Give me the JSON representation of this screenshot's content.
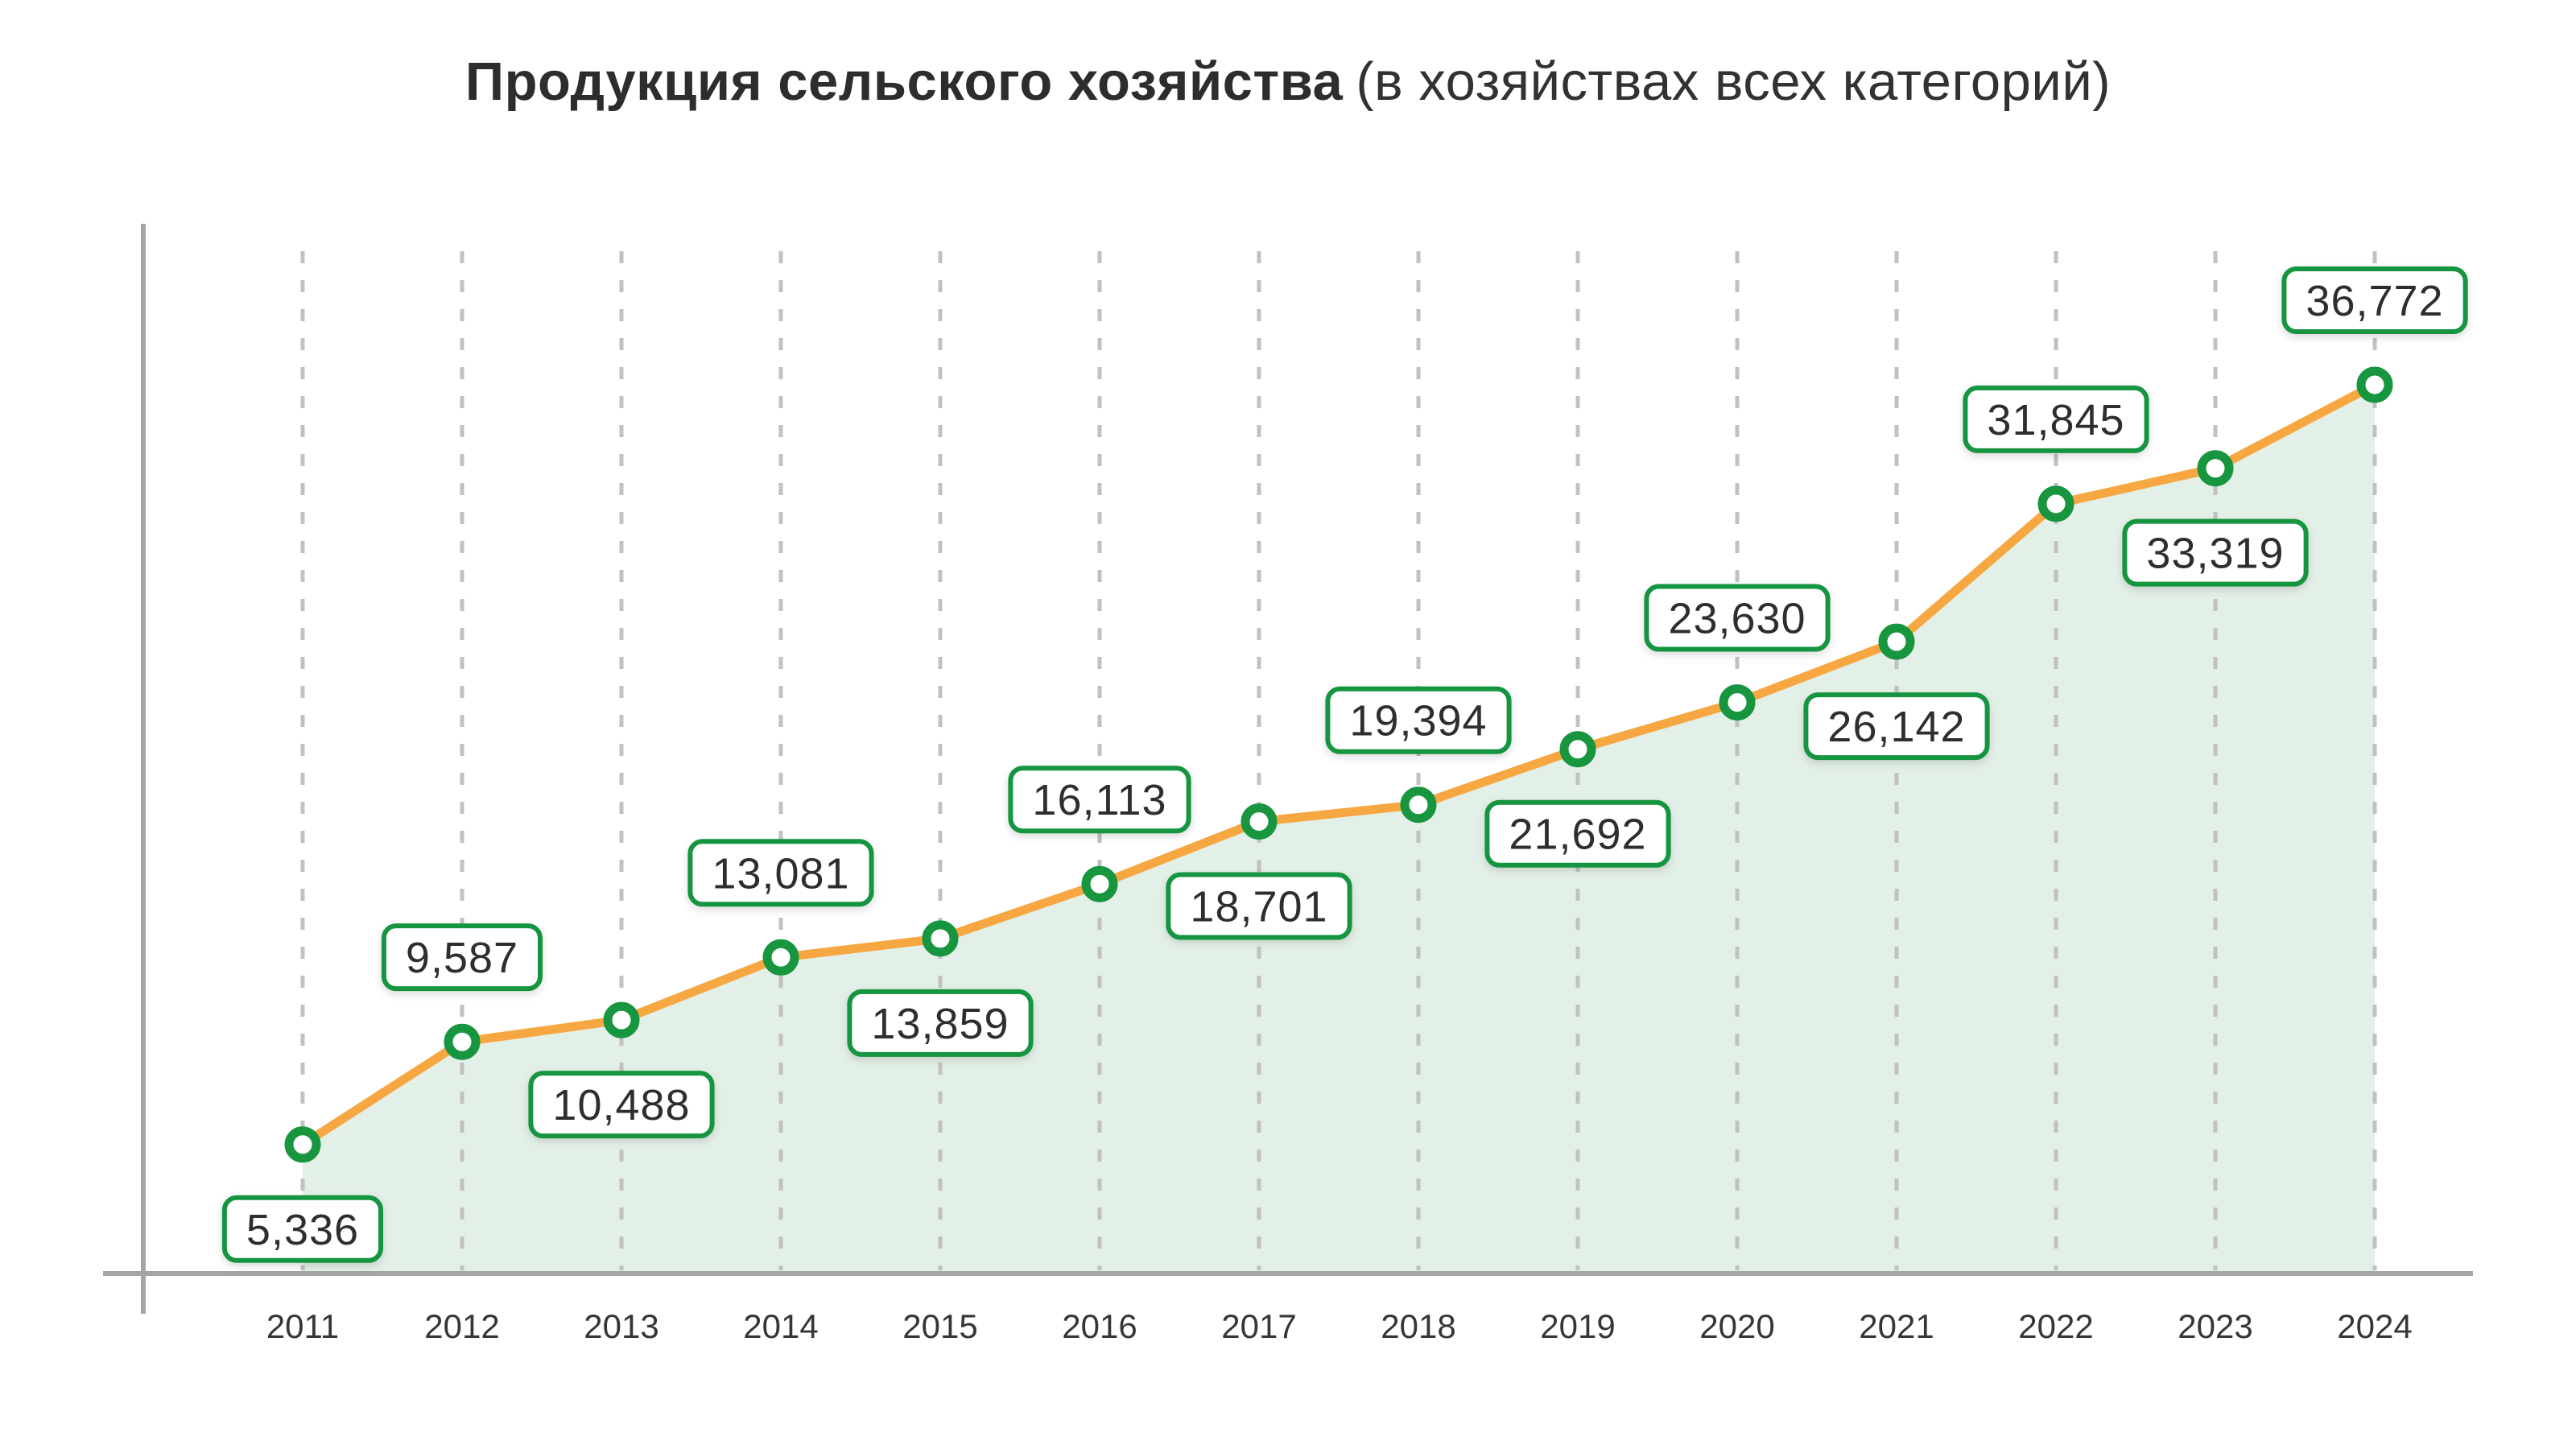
{
  "title": {
    "main": "Продукция сельского хозяйства",
    "parenthetical": "(в хозяйствах всех категорий)"
  },
  "chart_data": {
    "type": "line",
    "title": "Продукция сельского хозяйства (в хозяйствах всех категорий)",
    "categories": [
      "2011",
      "2012",
      "2013",
      "2014",
      "2015",
      "2016",
      "2017",
      "2018",
      "2019",
      "2020",
      "2021",
      "2022",
      "2023",
      "2024"
    ],
    "series": [
      {
        "name": "Продукция сельского хозяйства",
        "values": [
          5336,
          9587,
          10488,
          13081,
          13859,
          16113,
          18701,
          19394,
          21692,
          23630,
          26142,
          31845,
          33319,
          36772
        ]
      }
    ],
    "value_labels": [
      "5,336",
      "9,587",
      "10,488",
      "13,081",
      "13,859",
      "16,113",
      "18,701",
      "19,394",
      "21,692",
      "23,630",
      "26,142",
      "31,845",
      "33,319",
      "36,772"
    ],
    "value_label_positions": [
      "below",
      "above",
      "below",
      "above",
      "below",
      "above",
      "below",
      "above",
      "below",
      "above",
      "below",
      "above",
      "below",
      "above"
    ],
    "xlabel": "",
    "ylabel": "",
    "ylim": [
      0,
      43700
    ],
    "grid": "vertical-dashed",
    "legend_position": "none",
    "area_fill": true,
    "colors": {
      "line": "#F7A742",
      "marker_fill": "#FFFFFF",
      "marker_stroke": "#18953F",
      "area_fill": "#E3F0E7",
      "label_box_border": "#18953F",
      "label_box_bg": "#FFFFFF",
      "value_text": "#2F2F2F",
      "grid_line": "#C1C1C1",
      "axis_line": "#A5A5A5",
      "tick_text": "#363636",
      "title_text": "#2D2D2D"
    }
  }
}
